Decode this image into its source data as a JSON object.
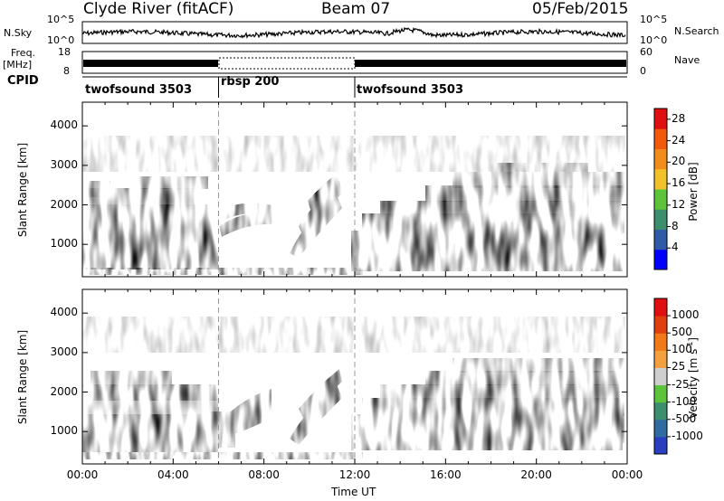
{
  "header": {
    "station": "Clyde River (fitACF)",
    "beam": "Beam 07",
    "date": "05/Feb/2015"
  },
  "strips": {
    "nsky_label": "N.Sky",
    "nsearch_label": "N.Search",
    "nsky_ticks": [
      "10^5",
      "10^0"
    ],
    "nsearch_ticks": [
      "10^5",
      "10^0"
    ],
    "freq_label_1": "Freq.",
    "freq_label_2": "[MHz]",
    "freq_ticks": [
      "18",
      "8"
    ],
    "nave_label": "Nave",
    "nave_ticks": [
      "60",
      "0"
    ],
    "cpid_label": "CPID"
  },
  "cpid_segments": [
    {
      "name": "twofsound 3503",
      "start_h": 0,
      "end_h": 6
    },
    {
      "name": "rbsp 200",
      "start_h": 6,
      "end_h": 12
    },
    {
      "name": "twofsound 3503",
      "start_h": 12,
      "end_h": 24
    }
  ],
  "axes": {
    "ylabel": "Slant Range [km]",
    "xlabel": "Time UT",
    "y_ticks": [
      "4000",
      "3000",
      "2000",
      "1000"
    ],
    "x_ticks": [
      "00:00",
      "04:00",
      "08:00",
      "12:00",
      "16:00",
      "20:00",
      "00:00"
    ]
  },
  "chart_data": [
    {
      "type": "heatmap",
      "panel": "power",
      "xlabel": "Time UT",
      "ylabel": "Slant Range [km]",
      "xlim": [
        0,
        24
      ],
      "ylim": [
        180,
        4600
      ],
      "colorbar": {
        "label": "Power [dB]",
        "ticks": [
          "28",
          "24",
          "20",
          "16",
          "12",
          "8",
          "4"
        ],
        "range": [
          0,
          30
        ],
        "colors": [
          "#0000ff",
          "#2f5aa6",
          "#3c8f6d",
          "#5cc43a",
          "#f2c22a",
          "#f28c1c",
          "#f05a0a",
          "#e01010"
        ]
      },
      "regions": [
        {
          "t": [
            0,
            6
          ],
          "r": [
            550,
            1900
          ],
          "level": "high"
        },
        {
          "t": [
            6,
            8.4
          ],
          "r": [
            1500,
            2300
          ],
          "level": "medium"
        },
        {
          "t": [
            9.3,
            11.2
          ],
          "r": [
            900,
            2500
          ],
          "level": "high"
        },
        {
          "t": [
            12,
            24
          ],
          "r": [
            500,
            1800
          ],
          "level": "high"
        },
        {
          "t": [
            14,
            24
          ],
          "r": [
            1800,
            2800
          ],
          "level": "mixed"
        }
      ]
    },
    {
      "type": "heatmap",
      "panel": "velocity",
      "xlabel": "Time UT",
      "ylabel": "Slant Range [km]",
      "xlim": [
        0,
        24
      ],
      "ylim": [
        180,
        4600
      ],
      "colorbar": {
        "label": "Velocity [m s-1]",
        "label_text": "Velocity [m s",
        "label_exp": "-1",
        "label_end": "]",
        "ticks": [
          "1000",
          "500",
          "100",
          "25",
          "-25",
          "-100",
          "-500",
          "-1000"
        ],
        "colors": [
          "#2a3fbf",
          "#2f6aa0",
          "#3c8f6d",
          "#5cc43a",
          "#cfcfcf",
          "#f2a040",
          "#f07a18",
          "#e04010",
          "#e01010"
        ]
      },
      "regions": [
        {
          "t": [
            0,
            6
          ],
          "r": [
            550,
            1900
          ],
          "level": "positive"
        },
        {
          "t": [
            6.4,
            8.6
          ],
          "r": [
            900,
            2000
          ],
          "level": "negative"
        },
        {
          "t": [
            9.3,
            11.2
          ],
          "r": [
            900,
            2500
          ],
          "level": "mixed"
        },
        {
          "t": [
            12,
            24
          ],
          "r": [
            500,
            1800
          ],
          "level": "negative"
        },
        {
          "t": [
            14,
            24
          ],
          "r": [
            1800,
            2800
          ],
          "level": "mixed"
        }
      ]
    }
  ]
}
